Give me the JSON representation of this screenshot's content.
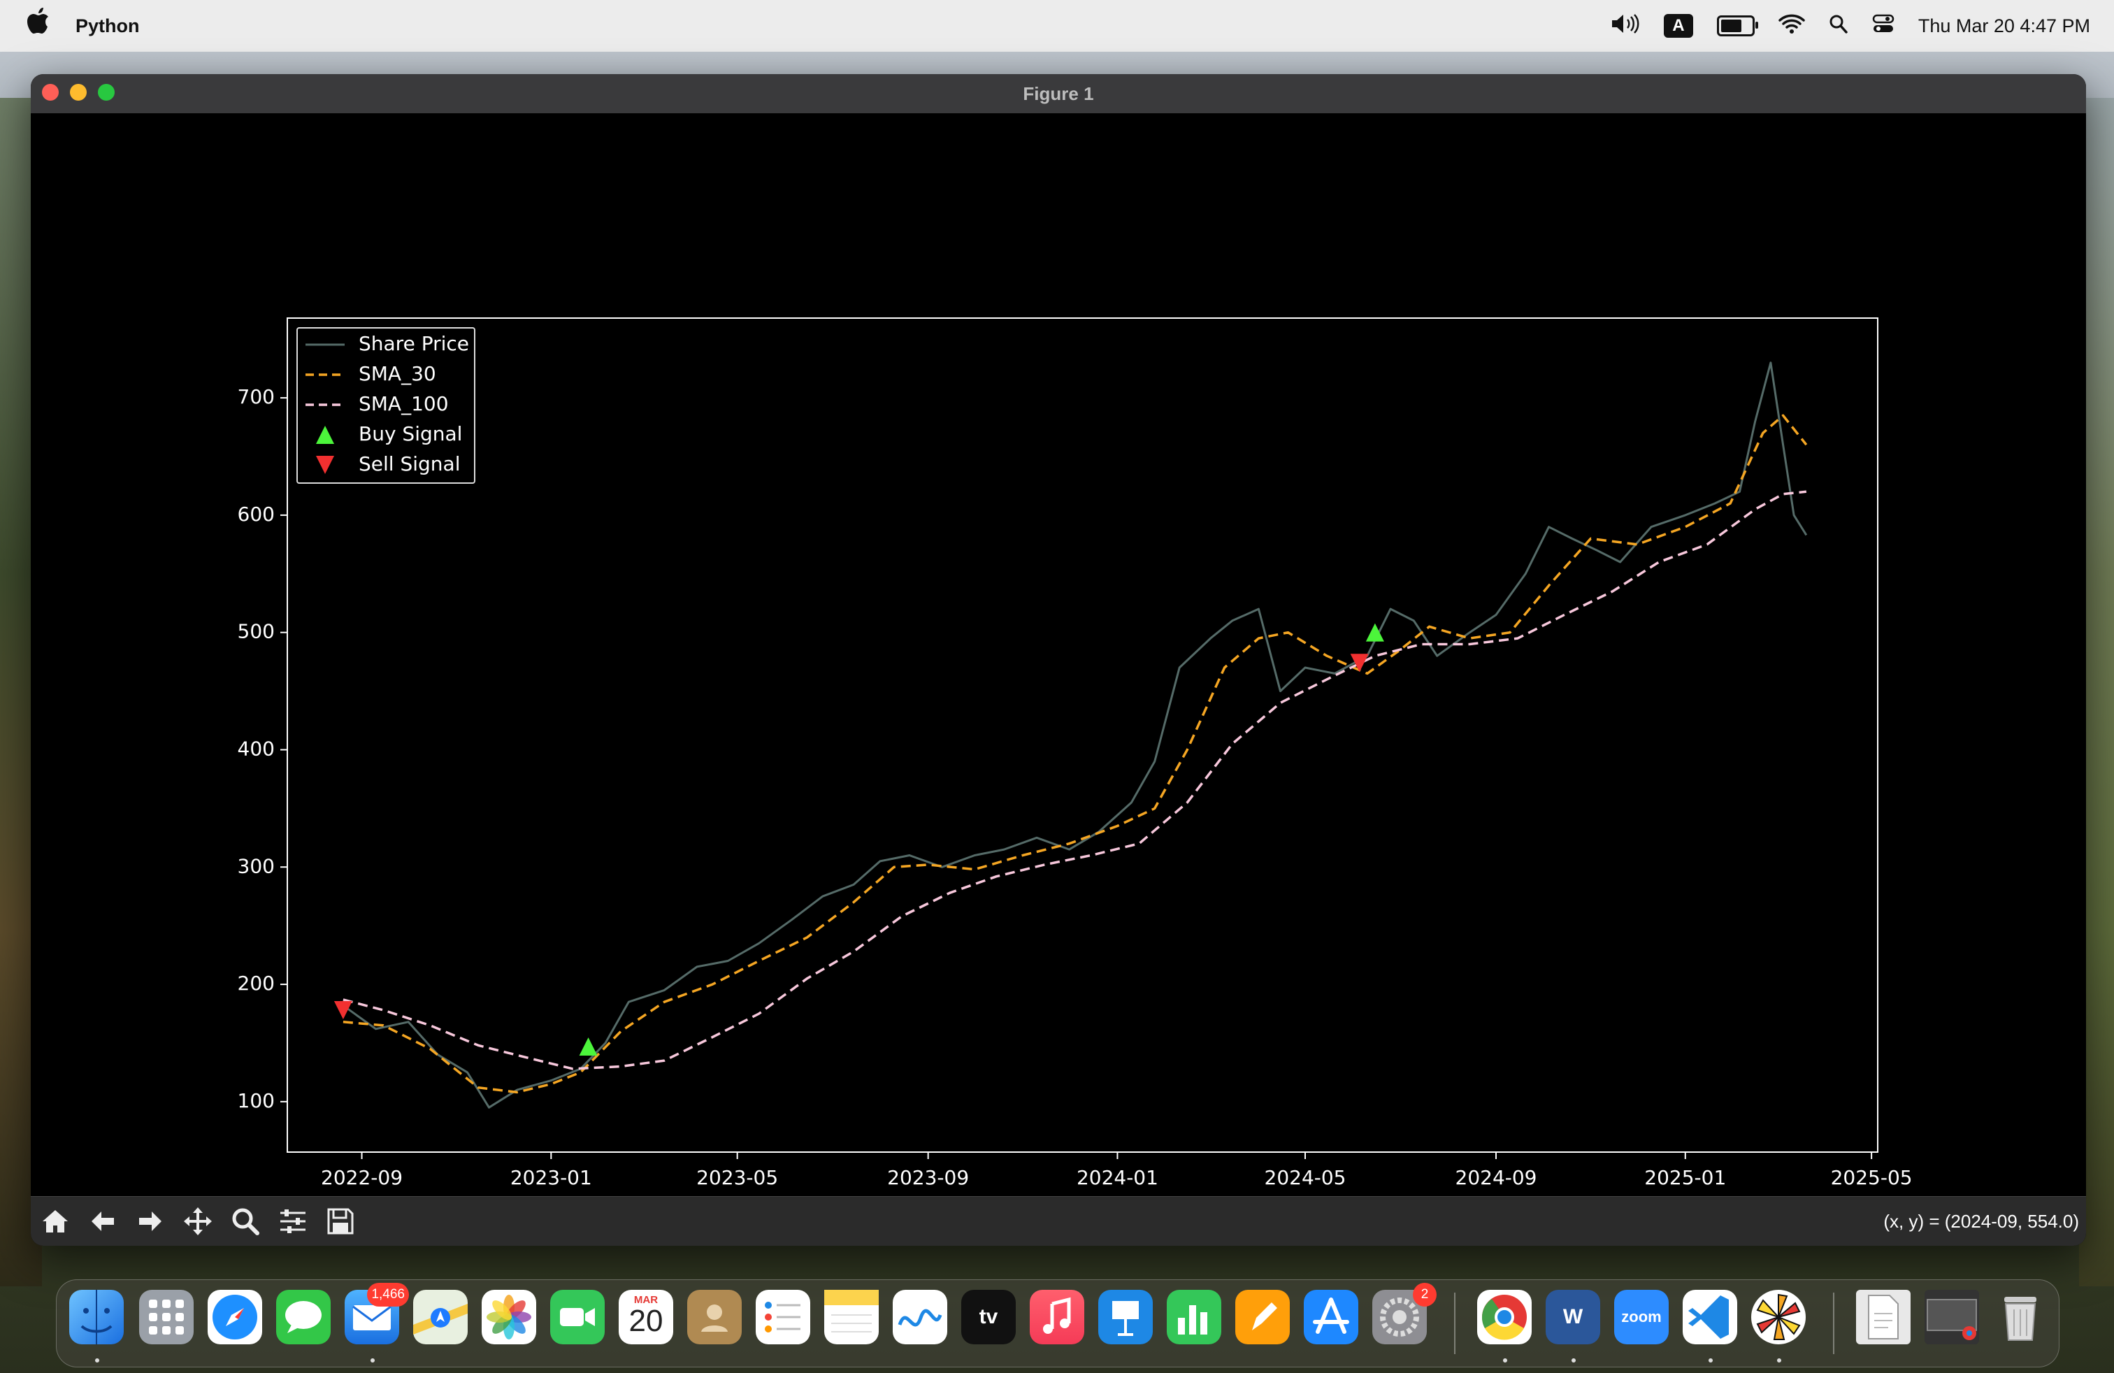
{
  "menubar": {
    "app_name": "Python",
    "keyboard_indicator": "A",
    "datetime": "Thu Mar 20  4:47 PM"
  },
  "window": {
    "title": "Figure 1"
  },
  "toolbar": {
    "buttons": [
      "home-icon",
      "back-icon",
      "forward-icon",
      "pan-icon",
      "zoom-icon",
      "configure-icon",
      "save-icon"
    ],
    "coords": "(x, y) = (2024-09, 554.0)"
  },
  "colors": {
    "share_price": "#556b68",
    "sma30": "#f5a623",
    "sma100": "#f8c8dc",
    "buy": "#4cf53b",
    "sell": "#f23030",
    "axes": "#ffffff",
    "background": "#000000"
  },
  "chart_data": {
    "type": "line",
    "title": "",
    "xlabel": "",
    "ylabel": "",
    "xlim": [
      "2022-07-15",
      "2025-05-05"
    ],
    "ylim": [
      57,
      768
    ],
    "x_ticks": [
      "2022-09",
      "2023-01",
      "2023-05",
      "2023-09",
      "2024-01",
      "2024-05",
      "2024-09",
      "2025-01",
      "2025-05"
    ],
    "y_ticks": [
      100,
      200,
      300,
      400,
      500,
      600,
      700
    ],
    "legend": {
      "position": "upper left",
      "entries": [
        "Share Price",
        "SMA_30",
        "SMA_100",
        "Buy Signal",
        "Sell Signal"
      ]
    },
    "series": [
      {
        "name": "Share Price",
        "style": "solid",
        "x": [
          "2022-08-20",
          "2022-09-10",
          "2022-10-01",
          "2022-10-20",
          "2022-11-08",
          "2022-11-22",
          "2022-12-10",
          "2023-01-01",
          "2023-01-20",
          "2023-02-05",
          "2023-02-20",
          "2023-03-15",
          "2023-04-05",
          "2023-04-25",
          "2023-05-15",
          "2023-06-05",
          "2023-06-25",
          "2023-07-15",
          "2023-08-01",
          "2023-08-20",
          "2023-09-10",
          "2023-10-01",
          "2023-10-20",
          "2023-11-10",
          "2023-12-01",
          "2023-12-20",
          "2024-01-10",
          "2024-01-25",
          "2024-02-10",
          "2024-03-01",
          "2024-03-15",
          "2024-04-01",
          "2024-04-15",
          "2024-05-01",
          "2024-05-20",
          "2024-06-10",
          "2024-06-25",
          "2024-07-10",
          "2024-07-25",
          "2024-08-15",
          "2024-09-01",
          "2024-09-20",
          "2024-10-05",
          "2024-10-20",
          "2024-11-05",
          "2024-11-20",
          "2024-12-10",
          "2025-01-01",
          "2025-01-20",
          "2025-02-05",
          "2025-02-15",
          "2025-02-25",
          "2025-03-05",
          "2025-03-12",
          "2025-03-20"
        ],
        "y": [
          182,
          162,
          168,
          140,
          125,
          95,
          110,
          118,
          128,
          150,
          185,
          195,
          215,
          220,
          235,
          255,
          275,
          285,
          305,
          310,
          300,
          310,
          315,
          325,
          315,
          330,
          355,
          390,
          470,
          495,
          510,
          520,
          450,
          470,
          465,
          480,
          520,
          510,
          480,
          500,
          515,
          550,
          590,
          580,
          570,
          560,
          590,
          600,
          610,
          620,
          680,
          730,
          660,
          600,
          583
        ]
      },
      {
        "name": "SMA_30",
        "style": "dashed",
        "x": [
          "2022-08-20",
          "2022-09-15",
          "2022-10-15",
          "2022-11-15",
          "2022-12-10",
          "2023-01-01",
          "2023-01-20",
          "2023-02-15",
          "2023-03-15",
          "2023-04-15",
          "2023-05-15",
          "2023-06-15",
          "2023-07-15",
          "2023-08-10",
          "2023-09-01",
          "2023-10-01",
          "2023-11-01",
          "2023-12-01",
          "2024-01-01",
          "2024-01-25",
          "2024-02-15",
          "2024-03-10",
          "2024-04-01",
          "2024-04-20",
          "2024-05-15",
          "2024-06-10",
          "2024-07-01",
          "2024-07-20",
          "2024-08-15",
          "2024-09-10",
          "2024-10-05",
          "2024-11-01",
          "2024-12-01",
          "2025-01-01",
          "2025-01-30",
          "2025-02-20",
          "2025-03-05",
          "2025-03-20"
        ],
        "y": [
          168,
          165,
          145,
          112,
          108,
          115,
          125,
          160,
          185,
          200,
          220,
          240,
          270,
          300,
          302,
          298,
          310,
          320,
          335,
          350,
          400,
          470,
          495,
          500,
          480,
          465,
          485,
          505,
          495,
          500,
          540,
          580,
          575,
          590,
          610,
          670,
          685,
          660
        ]
      },
      {
        "name": "SMA_100",
        "style": "dashed",
        "x": [
          "2022-08-20",
          "2022-09-15",
          "2022-10-15",
          "2022-11-15",
          "2022-12-15",
          "2023-01-15",
          "2023-02-15",
          "2023-03-15",
          "2023-04-15",
          "2023-05-15",
          "2023-06-15",
          "2023-07-15",
          "2023-08-15",
          "2023-09-15",
          "2023-10-15",
          "2023-11-15",
          "2023-12-15",
          "2024-01-15",
          "2024-02-15",
          "2024-03-15",
          "2024-04-15",
          "2024-05-15",
          "2024-06-15",
          "2024-07-15",
          "2024-08-15",
          "2024-09-15",
          "2024-10-15",
          "2024-11-15",
          "2024-12-15",
          "2025-01-15",
          "2025-02-15",
          "2025-03-05",
          "2025-03-20"
        ],
        "y": [
          187,
          178,
          165,
          148,
          138,
          128,
          130,
          135,
          155,
          175,
          205,
          228,
          258,
          278,
          292,
          302,
          310,
          320,
          355,
          405,
          440,
          460,
          480,
          490,
          490,
          495,
          515,
          535,
          560,
          575,
          605,
          618,
          620
        ]
      }
    ],
    "markers": [
      {
        "name": "Sell Signal",
        "x": "2022-08-20",
        "y": 178
      },
      {
        "name": "Buy Signal",
        "x": "2023-01-25",
        "y": 147
      },
      {
        "name": "Sell Signal",
        "x": "2024-06-05",
        "y": 474
      },
      {
        "name": "Buy Signal",
        "x": "2024-06-15",
        "y": 500
      }
    ]
  },
  "dock": {
    "mail_badge": "1,466",
    "settings_badge": "2",
    "calendar_month": "MAR",
    "calendar_day": "20",
    "appletv_label": "tv",
    "zoom_label": "zoom",
    "word_label": "W"
  }
}
